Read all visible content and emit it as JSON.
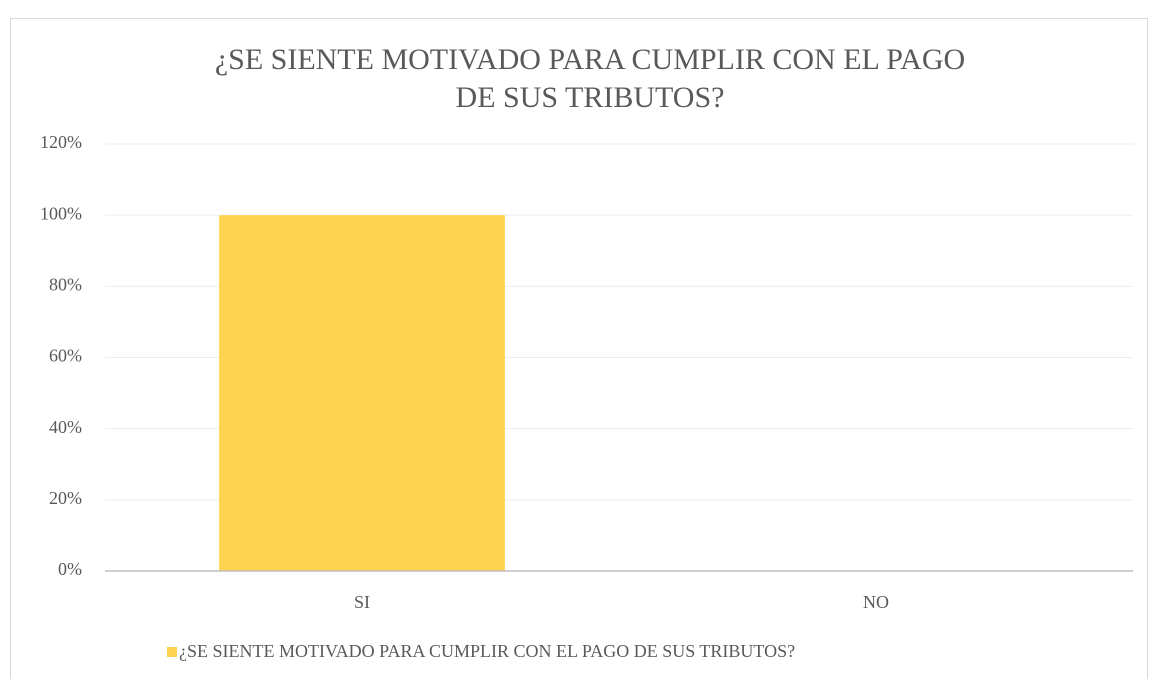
{
  "chart_data": {
    "type": "bar",
    "title": [
      "¿SE SIENTE MOTIVADO PARA CUMPLIR CON EL PAGO",
      "DE SUS TRIBUTOS?"
    ],
    "categories": [
      "SI",
      "NO"
    ],
    "series": [
      {
        "name": "¿SE SIENTE MOTIVADO PARA CUMPLIR CON EL PAGO DE SUS TRIBUTOS?",
        "color": "#fdd34f",
        "values": [
          100,
          0
        ]
      }
    ],
    "ylim": [
      0,
      120
    ],
    "yticks": [
      {
        "value": 0,
        "label": "0%"
      },
      {
        "value": 20,
        "label": "20%"
      },
      {
        "value": 40,
        "label": "40%"
      },
      {
        "value": 60,
        "label": "60%"
      },
      {
        "value": 80,
        "label": "80%"
      },
      {
        "value": 100,
        "label": "100%"
      },
      {
        "value": 120,
        "label": "120%"
      }
    ],
    "grid": true,
    "legend": "bottom"
  }
}
